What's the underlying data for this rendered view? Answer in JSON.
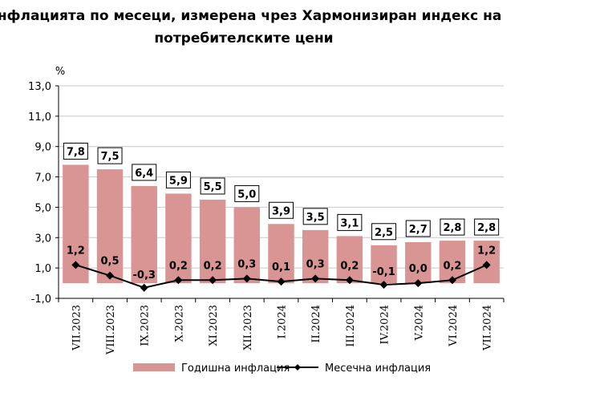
{
  "chart_data": {
    "type": "bar+line",
    "title_line1": "Инфлацията по месеци, измерена чрез Хармонизиран индекс на",
    "title_line2": "потребителските цени",
    "yunit": "%",
    "ylim": [
      -1.0,
      13.0
    ],
    "yticks": [
      "-1,0",
      "1,0",
      "3,0",
      "5,0",
      "7,0",
      "9,0",
      "11,0",
      "13,0"
    ],
    "ytick_values": [
      -1,
      1,
      3,
      5,
      7,
      9,
      11,
      13
    ],
    "grid": true,
    "legend_position": "bottom",
    "categories": [
      "VII.2023",
      "VIII.2023",
      "IX.2023",
      "X.2023",
      "XI.2023",
      "XII.2023",
      "I.2024",
      "II.2024",
      "III.2024",
      "IV.2024",
      "V.2024",
      "VI.2024",
      "VII.2024"
    ],
    "series": [
      {
        "name": "Годишна инфлация",
        "type": "bar",
        "color": "#d99594",
        "values": [
          7.8,
          7.5,
          6.4,
          5.9,
          5.5,
          5.0,
          3.9,
          3.5,
          3.1,
          2.5,
          2.7,
          2.8,
          2.8
        ],
        "labels": [
          "7,8",
          "7,5",
          "6,4",
          "5,9",
          "5,5",
          "5,0",
          "3,9",
          "3,5",
          "3,1",
          "2,5",
          "2,7",
          "2,8",
          "2,8"
        ]
      },
      {
        "name": "Месечна инфлация",
        "type": "line",
        "color": "#000000",
        "values": [
          1.2,
          0.5,
          -0.3,
          0.2,
          0.2,
          0.3,
          0.1,
          0.3,
          0.2,
          -0.1,
          0.0,
          0.2,
          1.2
        ],
        "labels": [
          "1,2",
          "0,5",
          "-0,3",
          "0,2",
          "0,2",
          "0,3",
          "0,1",
          "0,3",
          "0,2",
          "-0,1",
          "0,0",
          "0,2",
          "1,2"
        ]
      }
    ]
  }
}
